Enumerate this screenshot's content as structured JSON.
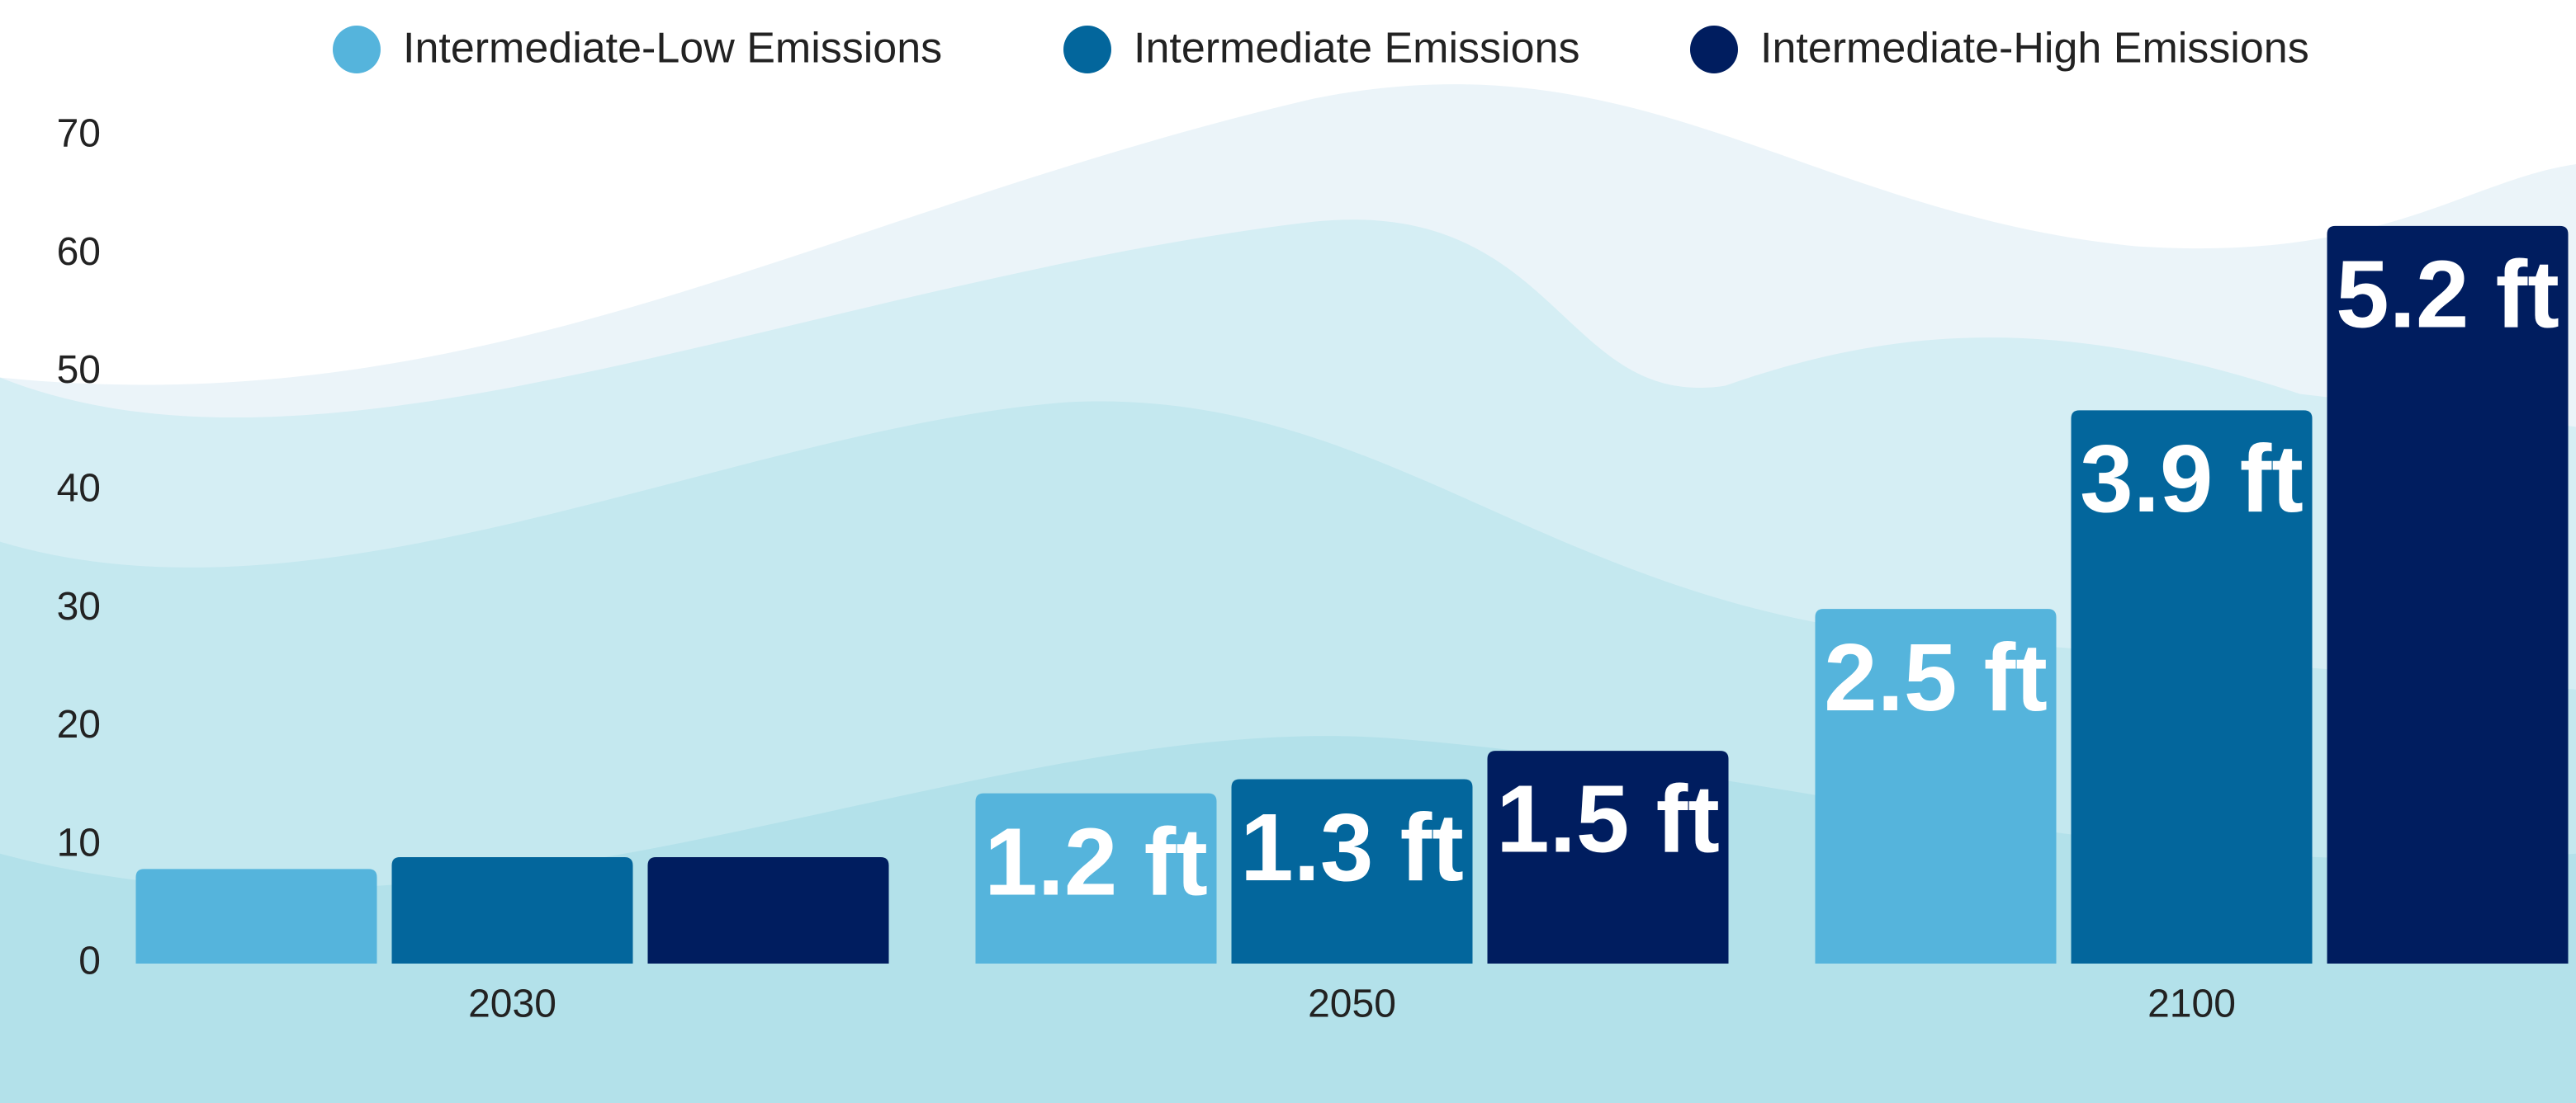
{
  "chart_data": {
    "type": "bar",
    "categories": [
      "2030",
      "2050",
      "2100"
    ],
    "series": [
      {
        "name": "Intermediate-Low Emissions",
        "color": "#55b4dc",
        "values": [
          8,
          14.4,
          30
        ],
        "value_labels": [
          null,
          "1.2 ft",
          "2.5 ft"
        ]
      },
      {
        "name": "Intermediate Emissions",
        "color": "#03669c",
        "values": [
          9,
          15.6,
          46.8
        ],
        "value_labels": [
          null,
          "1.3 ft",
          "3.9 ft"
        ]
      },
      {
        "name": "Intermediate-High Emissions",
        "color": "#001d5f",
        "values": [
          9,
          18,
          62.4
        ],
        "value_labels": [
          null,
          "1.5 ft",
          "5.2 ft"
        ]
      }
    ],
    "ylim": [
      0,
      70
    ],
    "yticks": [
      0,
      10,
      20,
      30,
      40,
      50,
      60,
      70
    ],
    "legend": "top"
  }
}
